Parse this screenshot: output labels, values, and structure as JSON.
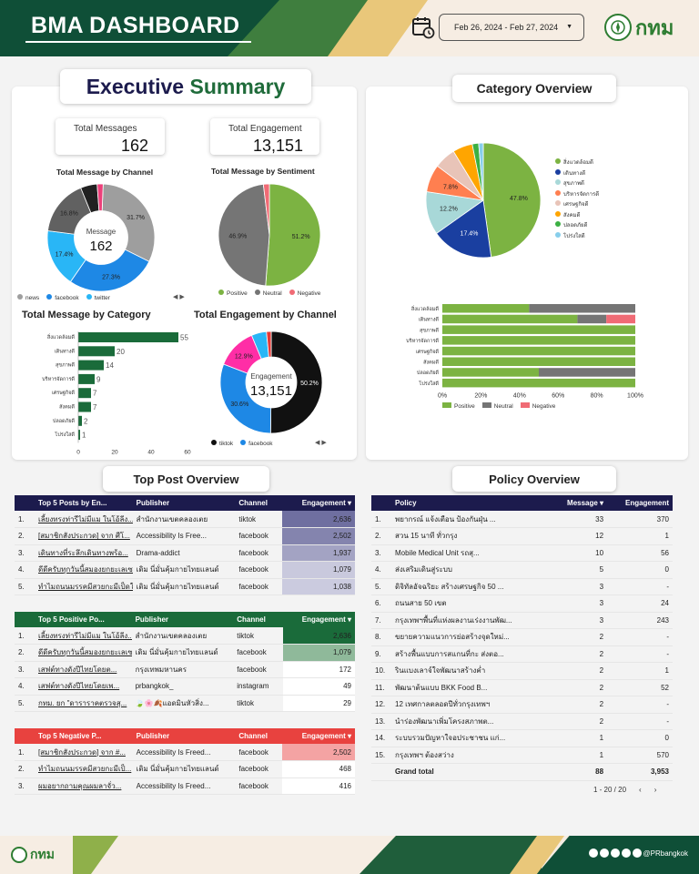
{
  "header": {
    "title": "BMA DASHBOARD",
    "date_range": "Feb 26, 2024 - Feb 27, 2024",
    "logo_text": "กทม"
  },
  "exec": {
    "title_part1": "Executive",
    "title_part2": "Summary",
    "total_messages_label": "Total Messages",
    "total_messages_value": "162",
    "total_engagement_label": "Total Engagement",
    "total_engagement_value": "13,151"
  },
  "colors": {
    "dark_green": "#0f4f37",
    "accent_green": "#3f7e3e",
    "positive": "#7cb342",
    "neutral": "#757575",
    "negative": "#f06b75",
    "navy": "#1c1b4d",
    "table_green": "#1a6b3a",
    "table_red": "#e8423f"
  },
  "chart_data": [
    {
      "id": "channel",
      "type": "pie",
      "title": "Total Message by Channel",
      "center_label": "Message",
      "center_value": "162",
      "slices": [
        {
          "name": "news",
          "value": 31.7,
          "label": "31.7%",
          "color": "#9e9e9e"
        },
        {
          "name": "facebook",
          "value": 27.3,
          "label": "27.3%",
          "color": "#1e88e5"
        },
        {
          "name": "twitter",
          "value": 17.4,
          "label": "17.4%",
          "color": "#29b6f6"
        },
        {
          "name": "",
          "value": 16.8,
          "label": "16.8%",
          "color": "#616161"
        },
        {
          "name": "",
          "value": 5.0,
          "label": "5%",
          "color": "#212121"
        },
        {
          "name": "",
          "value": 1.8,
          "label": "",
          "color": "#ec407a"
        }
      ],
      "legend": [
        "news",
        "facebook",
        "twitter"
      ]
    },
    {
      "id": "sentiment",
      "type": "pie",
      "title": "Total Message by Sentiment",
      "slices": [
        {
          "name": "Positive",
          "value": 51.2,
          "label": "51.2%",
          "color": "#7cb342"
        },
        {
          "name": "Neutral",
          "value": 46.9,
          "label": "46.9%",
          "color": "#757575"
        },
        {
          "name": "Negative",
          "value": 1.9,
          "label": "",
          "color": "#f06b75"
        }
      ],
      "legend": [
        "Positive",
        "Neutral",
        "Negative"
      ]
    },
    {
      "id": "category_bar",
      "type": "bar",
      "title": "Total Message by Category",
      "categories": [
        "สิ่งแวดล้อมดี",
        "เดินทางดี",
        "สุขภาพดี",
        "บริหารจัดการดี",
        "เศรษฐกิจดี",
        "สังคมดี",
        "ปลอดภัยดี",
        "โปร่งใสดี"
      ],
      "values": [
        55,
        20,
        14,
        9,
        7,
        7,
        2,
        1
      ],
      "xticks": [
        0,
        20,
        40,
        60
      ],
      "xlim": [
        0,
        60
      ]
    },
    {
      "id": "engagement",
      "type": "pie",
      "title": "Total Engagement by Channel",
      "center_label": "Engagement",
      "center_value": "13,151",
      "slices": [
        {
          "name": "tiktok",
          "value": 50.2,
          "label": "50.2%",
          "color": "#111111"
        },
        {
          "name": "facebook",
          "value": 30.6,
          "label": "30.6%",
          "color": "#1e88e5"
        },
        {
          "name": "",
          "value": 12.9,
          "label": "12.9%",
          "color": "#ff2ea6"
        },
        {
          "name": "",
          "value": 4.8,
          "label": "",
          "color": "#29b6f6"
        },
        {
          "name": "",
          "value": 1.5,
          "label": "",
          "color": "#e53935"
        }
      ],
      "legend": [
        "tiktok",
        "facebook"
      ]
    },
    {
      "id": "category_pie",
      "type": "pie",
      "title": "Category Overview",
      "slices": [
        {
          "name": "สิ่งแวดล้อมดี",
          "value": 47.8,
          "label": "47.8%",
          "color": "#7cb342"
        },
        {
          "name": "เดินทางดี",
          "value": 17.4,
          "label": "17.4%",
          "color": "#1a3fa0"
        },
        {
          "name": "สุขภาพดี",
          "value": 12.2,
          "label": "12.2%",
          "color": "#a8d8d8"
        },
        {
          "name": "บริหารจัดการดี",
          "value": 7.8,
          "label": "7.8%",
          "color": "#ff7f50"
        },
        {
          "name": "เศรษฐกิจดี",
          "value": 6.1,
          "label": "",
          "color": "#e8c4b8"
        },
        {
          "name": "สังคมดี",
          "value": 5.6,
          "label": "",
          "color": "#ffa500"
        },
        {
          "name": "ปลอดภัยดี",
          "value": 1.8,
          "label": "",
          "color": "#3cb043"
        },
        {
          "name": "โปร่งใสดี",
          "value": 1.3,
          "label": "",
          "color": "#87ceeb"
        }
      ]
    },
    {
      "id": "category_sentiment",
      "type": "bar",
      "stacked": true,
      "categories": [
        "สิ่งแวดล้อมดี",
        "เดินทางดี",
        "สุขภาพดี",
        "บริหารจัดการดี",
        "เศรษฐกิจดี",
        "สังคมดี",
        "ปลอดภัยดี",
        "โปร่งใสดี"
      ],
      "series": [
        {
          "name": "Positive",
          "color": "#7cb342",
          "values": [
            45,
            70,
            100,
            100,
            100,
            100,
            50,
            100
          ]
        },
        {
          "name": "Neutral",
          "color": "#757575",
          "values": [
            55,
            15,
            0,
            0,
            0,
            0,
            50,
            0
          ]
        },
        {
          "name": "Negative",
          "color": "#f06b75",
          "values": [
            0,
            15,
            0,
            0,
            0,
            0,
            0,
            0
          ]
        }
      ],
      "xticks": [
        "0%",
        "20%",
        "40%",
        "60%",
        "80%",
        "100%"
      ],
      "xlim": [
        0,
        100
      ]
    }
  ],
  "category_overview_title": "Category Overview",
  "top_post_title": "Top Post Overview",
  "policy_title": "Policy Overview",
  "top_posts": {
    "headers": [
      "Top 5 Posts by En...",
      "Publisher",
      "Channel",
      "Engagement ▾"
    ],
    "rows": [
      {
        "idx": "1.",
        "post": "เลี้ยงทรงท่ารีไม่มีแม ในโอ้ลีง...",
        "publisher": "สำนักงานเขตคลองเตย",
        "channel": "tiktok",
        "eng": "2,636",
        "shade": "#6f6fa0"
      },
      {
        "idx": "2.",
        "post": "[สมาชิกสังประกวด] จาก ศีโ...",
        "publisher": "Accessibility Is Free...",
        "channel": "facebook",
        "eng": "2,502",
        "shade": "#8484ae"
      },
      {
        "idx": "3.",
        "post": "เดินทางที่ระลึกเดินทางพร้อ...",
        "publisher": "Drama-addict",
        "channel": "facebook",
        "eng": "1,937",
        "shade": "#a3a3c3"
      },
      {
        "idx": "4.",
        "post": "ดีดีครับทุกวันนี้สมองยกยะเลเซ...",
        "publisher": "เดิม นี่มั่นคุ้มกายไทยแลนด์",
        "channel": "facebook",
        "eng": "1,079",
        "shade": "#c9c9dd"
      },
      {
        "idx": "5.",
        "post": "ทำไมถนนมรรคมีสวยกะมีเป็ดให้...",
        "publisher": "เดิม นี่มั่นคุ้มกายไทยแลนด์",
        "channel": "facebook",
        "eng": "1,038",
        "shade": "#cbcbdf"
      }
    ]
  },
  "top_positive": {
    "headers": [
      "Top 5 Positive Po...",
      "Publisher",
      "Channel",
      "Engagement ▾"
    ],
    "rows": [
      {
        "idx": "1.",
        "post": "เลี้ยงทรงท่ารีไม่มีแม ในโอ้ลีง...",
        "publisher": "สำนักงานเขตคลองเตย",
        "channel": "tiktok",
        "eng": "2,636",
        "shade": "#1a6b3a"
      },
      {
        "idx": "2.",
        "post": "ดีดีครับทุกวันนี้สมองยกยะเลเซ...",
        "publisher": "เดิม นี่มั่นคุ้มกายไทยแลนด์",
        "channel": "facebook",
        "eng": "1,079",
        "shade": "#8fb99a"
      },
      {
        "idx": "3.",
        "post": "เสฟต์ทางดังปีไทยโดยต...",
        "publisher": "กรุงเทพมหานคร",
        "channel": "facebook",
        "eng": "172",
        "shade": "#ffffff"
      },
      {
        "idx": "4.",
        "post": "เสฟต์ทางดังปีไทยโดยเพ...",
        "publisher": "prbangkok_",
        "channel": "instagram",
        "eng": "49",
        "shade": "#ffffff"
      },
      {
        "idx": "5.",
        "post": "กทม. ยก \"ดาราราคตรวจสุ...",
        "publisher": "🍃🌸🍂แอดมินหัวสิ่ง...",
        "channel": "tiktok",
        "eng": "29",
        "shade": "#ffffff"
      }
    ]
  },
  "top_negative": {
    "headers": [
      "Top 5 Negative P...",
      "Publisher",
      "Channel",
      "Engagement ▾"
    ],
    "rows": [
      {
        "idx": "1.",
        "post": "[สมาชิกสังประกวด] จาก #...",
        "publisher": "Accessibility Is Freed...",
        "channel": "facebook",
        "eng": "2,502",
        "shade": "#f4a3a3"
      },
      {
        "idx": "2.",
        "post": "ทำไมถนนมรรคมีสวยกะมีเป็...",
        "publisher": "เดิม นี่มั่นคุ้มกายไทยแลนด์",
        "channel": "facebook",
        "eng": "468",
        "shade": "#ffffff"
      },
      {
        "idx": "3.",
        "post": "ผมอยากถามคุณผมลาจั่ว...",
        "publisher": "Accessibility Is Freed...",
        "channel": "facebook",
        "eng": "416",
        "shade": "#ffffff"
      }
    ]
  },
  "policy": {
    "headers": [
      "Policy",
      "Message ▾",
      "Engagement"
    ],
    "rows": [
      {
        "idx": "1.",
        "name": "พยากรณ์ แจ้งเตือน ป้องกันฝุ่น ...",
        "msg": "33",
        "eng": "370"
      },
      {
        "idx": "2.",
        "name": "สวน 15 นาที ทั่วกรุง",
        "msg": "12",
        "eng": "1"
      },
      {
        "idx": "3.",
        "name": "Mobile Medical Unit รถสุ...",
        "msg": "10",
        "eng": "56"
      },
      {
        "idx": "4.",
        "name": "ส่งเสริมเดินสู่ระบบ",
        "msg": "5",
        "eng": "0"
      },
      {
        "idx": "5.",
        "name": "ดิจิทัลอัจฉริยะ สร้างเศรษฐกิจ 50 ...",
        "msg": "3",
        "eng": "-"
      },
      {
        "idx": "6.",
        "name": "ถนนสาย 50 เขต",
        "msg": "3",
        "eng": "24"
      },
      {
        "idx": "7.",
        "name": "กรุงเทพฯพื้นที่แห่งผลงานเร่งงานพัฒ...",
        "msg": "3",
        "eng": "243"
      },
      {
        "idx": "8.",
        "name": "ขยายความแนวการย่อสร้างจุดใหม่...",
        "msg": "2",
        "eng": "-"
      },
      {
        "idx": "9.",
        "name": "สร้างพื้นแบบการสแกนที่กะ ส่งตอ...",
        "msg": "2",
        "eng": "-"
      },
      {
        "idx": "10.",
        "name": "รินแบงเลาจ์ใจพัฒนาสร้างค่ำ",
        "msg": "2",
        "eng": "1"
      },
      {
        "idx": "11.",
        "name": "พัฒนาต้นแบบ BKK Food B...",
        "msg": "2",
        "eng": "52"
      },
      {
        "idx": "12.",
        "name": "12 เทศกาลตลอดปีทั่วกรุงเทพฯ",
        "msg": "2",
        "eng": "-"
      },
      {
        "idx": "13.",
        "name": "นำร่องพัฒนาเพิ่มโครงสภาพต...",
        "msg": "2",
        "eng": "-"
      },
      {
        "idx": "14.",
        "name": "ระบบรวมปัญหาใจอประชาชน แก่...",
        "msg": "1",
        "eng": "0"
      },
      {
        "idx": "15.",
        "name": "กรุงเทพฯ ต้องสว่าง",
        "msg": "1",
        "eng": "570"
      }
    ],
    "total_label": "Grand total",
    "total_msg": "88",
    "total_eng": "3,953",
    "pagination": "1 - 20 / 20"
  },
  "footer": {
    "logo_text": "กทม",
    "handle": "@PRbangkok"
  }
}
